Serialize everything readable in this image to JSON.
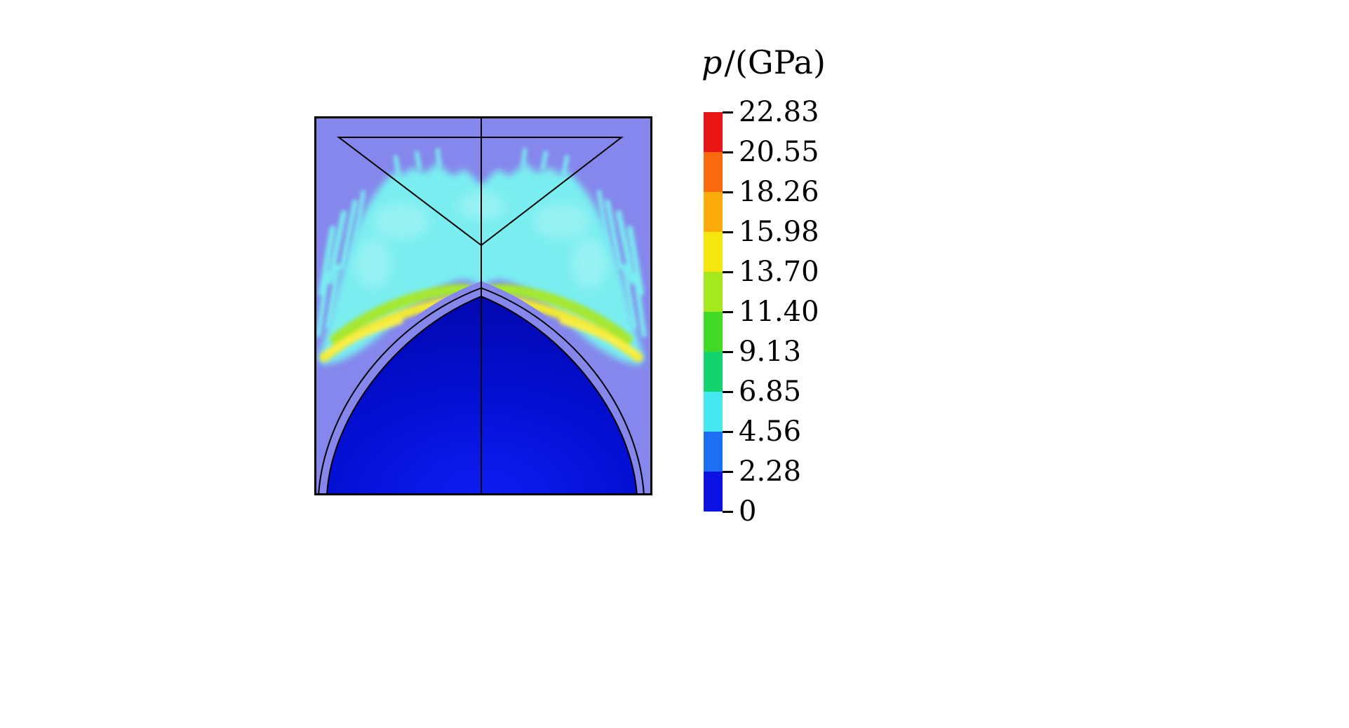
{
  "figure": {
    "background": "#ffffff"
  },
  "chart_data": {
    "type": "heatmap",
    "quantity": "pressure",
    "title": "p/(GPa)",
    "title_symbol": "p",
    "title_rest": "/(GPa)",
    "layout": {
      "legend_position": "right",
      "grid": false,
      "symmetry_axis": "vertical center line through simulation domain"
    },
    "colorbar": {
      "units": "GPa",
      "min": 0,
      "max": 22.83,
      "tick_labels": [
        "22.83",
        "20.55",
        "18.26",
        "15.98",
        "13.70",
        "11.40",
        "9.13",
        "6.85",
        "4.56",
        "2.28",
        "0"
      ],
      "tick_values": [
        22.83,
        20.55,
        18.26,
        15.98,
        13.7,
        11.4,
        9.13,
        6.85,
        4.56,
        2.28,
        0
      ],
      "segment_colors": [
        "#e81617",
        "#fa6a0e",
        "#fcab0b",
        "#f3e70f",
        "#a5e81f",
        "#43da27",
        "#12d36e",
        "#46e9f0",
        "#1e6ef2",
        "#0a11e0"
      ]
    },
    "field_colors": {
      "background": "#8587ec",
      "cyan": "#79edf0",
      "cyan_light": "#aef5f6",
      "green": "#a4e833",
      "yellow": "#f2e832",
      "yellow_bright": "#f8ef46",
      "dome_dark": "#0208b2",
      "dome_mid": "#040fd2",
      "dome_bright": "#0e1cf2",
      "outline": "#000000"
    }
  }
}
